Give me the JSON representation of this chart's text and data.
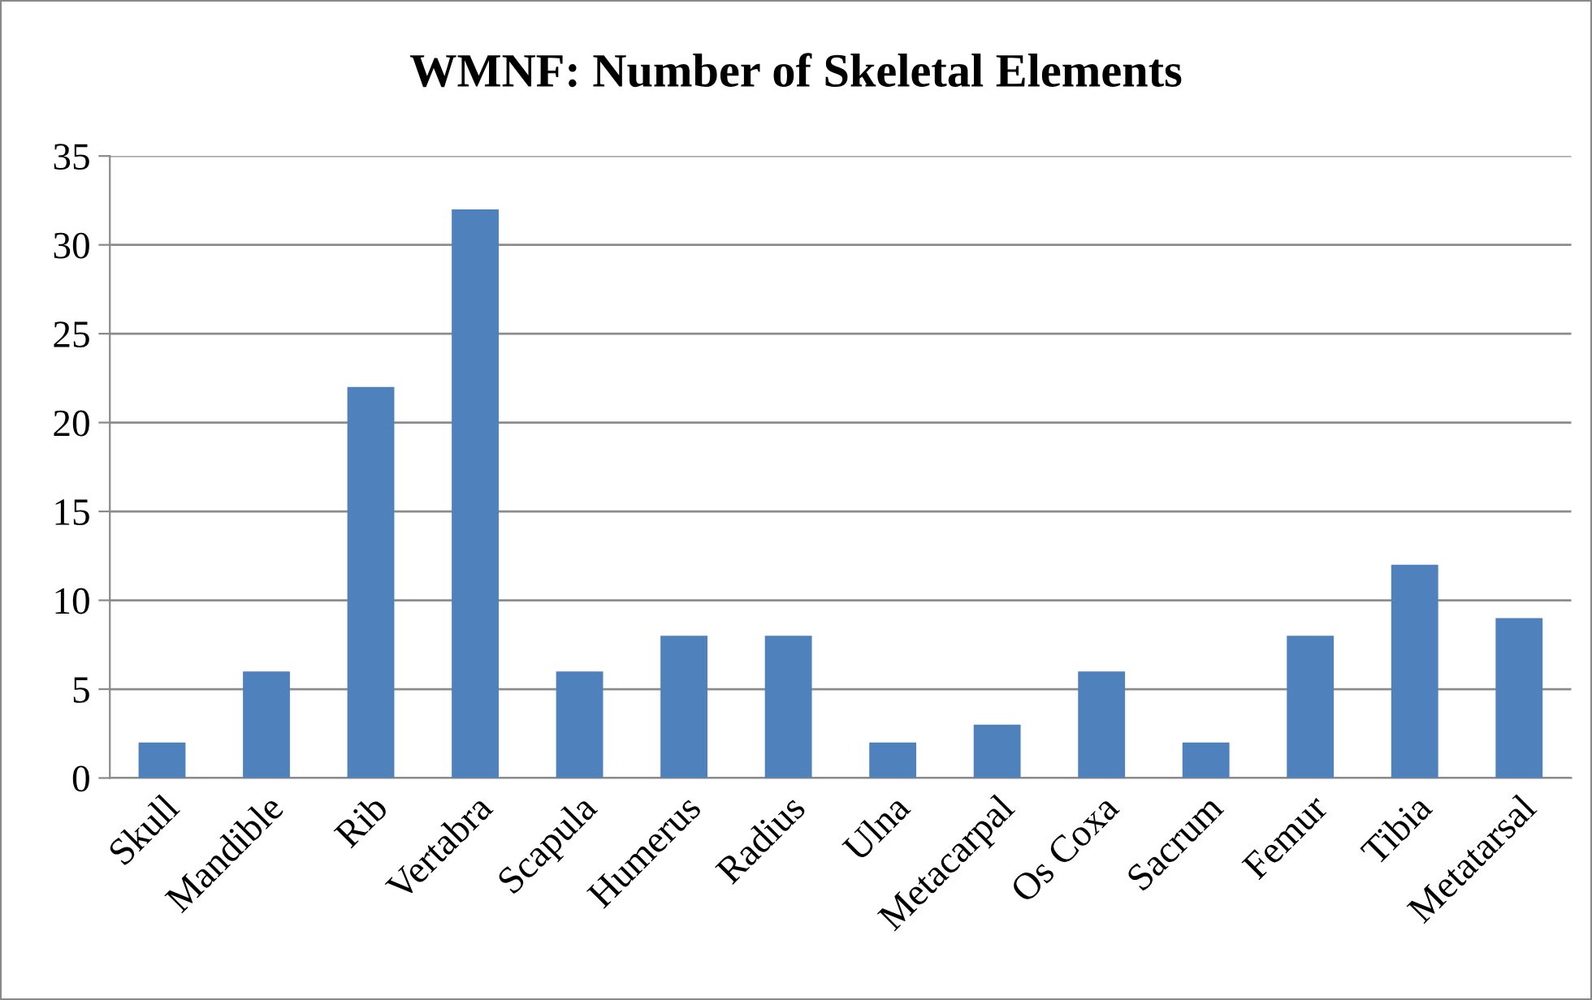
{
  "chart_data": {
    "type": "bar",
    "title": "WMNF: Number of Skeletal Elements",
    "categories": [
      "Skull",
      "Mandible",
      "Rib",
      "Vertabra",
      "Scapula",
      "Humerus",
      "Radius",
      "Ulna",
      "Metacarpal",
      "Os Coxa",
      "Sacrum",
      "Femur",
      "Tibia",
      "Metatarsal"
    ],
    "values": [
      2,
      6,
      22,
      32,
      6,
      8,
      8,
      2,
      3,
      6,
      2,
      8,
      12,
      9
    ],
    "color": "#4f81bd",
    "ylim": [
      0,
      35
    ],
    "yticks": [
      0,
      5,
      10,
      15,
      20,
      25,
      30,
      35
    ],
    "grid": "y",
    "legend": false
  }
}
